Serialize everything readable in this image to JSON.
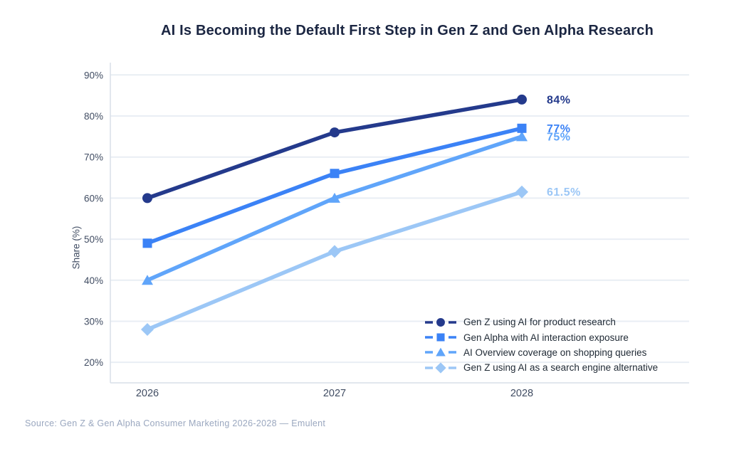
{
  "title": "AI Is Becoming the Default First Step in Gen Z and Gen Alpha Research",
  "source": "Source: Gen Z & Gen Alpha Consumer Marketing 2026-2028 — Emulent",
  "chart_data": {
    "type": "line",
    "categories": [
      "2026",
      "2027",
      "2028"
    ],
    "series": [
      {
        "name": "Gen Z using AI for product research",
        "values": [
          60,
          76,
          84
        ],
        "color": "#243a8c",
        "marker": "circle",
        "end_label": "84%"
      },
      {
        "name": "Gen Alpha with AI interaction exposure",
        "values": [
          49,
          66,
          77
        ],
        "color": "#3b82f6",
        "marker": "square",
        "end_label": "77%"
      },
      {
        "name": "AI Overview coverage on shopping queries",
        "values": [
          40,
          60,
          75
        ],
        "color": "#60a5fa",
        "marker": "triangle",
        "end_label": "75%"
      },
      {
        "name": "Gen Z using AI as a search engine alternative",
        "values": [
          28,
          47,
          61.5
        ],
        "color": "#9cc7f6",
        "marker": "diamond",
        "end_label": "61.5%"
      }
    ],
    "title": "AI Is Becoming the Default First Step in Gen Z and Gen Alpha Research",
    "xlabel": "",
    "ylabel": "Share (%)",
    "yticks": [
      20,
      30,
      40,
      50,
      60,
      70,
      80,
      90
    ],
    "ytick_suffix": "%",
    "ylim": [
      15,
      93
    ],
    "grid": "horizontal",
    "legend_position": "lower right"
  },
  "colors": {
    "title": "#1b2642",
    "tick_label": "#414d63",
    "gridline": "#e9eef4",
    "spine": "#d9dfe8",
    "source": "#9aa7bf",
    "background": "#ffffff"
  }
}
